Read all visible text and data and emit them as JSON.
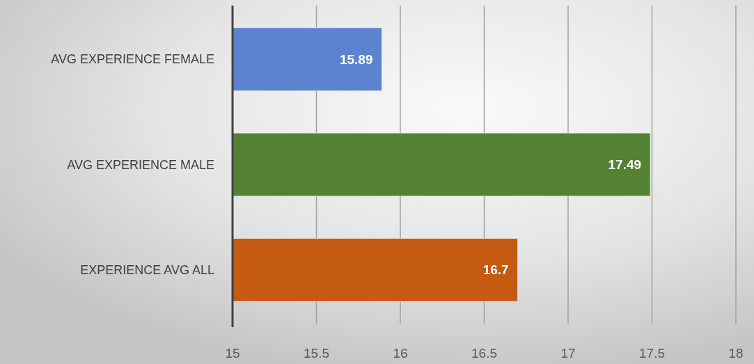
{
  "chart_data": {
    "type": "bar",
    "orientation": "horizontal",
    "categories": [
      "AVG EXPERIENCE FEMALE",
      "AVG EXPERIENCE MALE",
      "EXPERIENCE AVG ALL"
    ],
    "values": [
      15.89,
      17.49,
      16.7
    ],
    "colors": [
      "#5b83cf",
      "#548235",
      "#c55a11"
    ],
    "xlim": [
      15,
      18
    ],
    "xticks": [
      15,
      15.5,
      16,
      16.5,
      17,
      17.5,
      18
    ],
    "grid": "x",
    "data_labels": true
  }
}
